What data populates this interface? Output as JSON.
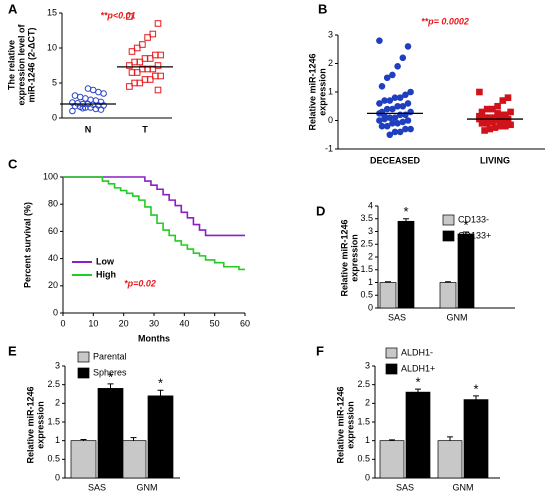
{
  "chart_data": [
    {
      "type": "dot",
      "panel": "A",
      "annotation": "**p<0.01",
      "ylabel": [
        "The relative",
        "expression level of",
        "miR-1246  (2-ΔCT)"
      ],
      "categories": [
        "N",
        "T"
      ],
      "colors": [
        "#2a44c9",
        "#e8191c"
      ],
      "markers": [
        "circle",
        "square"
      ],
      "filled": false,
      "points": [
        [
          1,
          1.2,
          1.3,
          1.5,
          1.5,
          1.6,
          1.7,
          1.8,
          1.8,
          1.9,
          2,
          2,
          2.1,
          2.2,
          2.3,
          2.5,
          2.6,
          2.8,
          3,
          3.2,
          3.5,
          3.7,
          4,
          4.2,
          1.4
        ],
        [
          14.5,
          13.5,
          12,
          11.5,
          10.5,
          10,
          9.5,
          9,
          9,
          8.5,
          8.5,
          8,
          8,
          7.5,
          7.5,
          7,
          7,
          7,
          6.5,
          6.5,
          6,
          6,
          5.5,
          5.5,
          5,
          5,
          4.5,
          4
        ]
      ],
      "means": [
        2,
        7.3
      ],
      "ylim": [
        0,
        15
      ],
      "yticks": [
        0,
        5,
        10,
        15
      ]
    },
    {
      "type": "dot",
      "panel": "B",
      "annotation": "**p= 0.0002",
      "ylabel": [
        "Relative miR-1246",
        "expression"
      ],
      "categories": [
        "DECEASED",
        "LIVING"
      ],
      "colors": [
        "#1f3fbf",
        "#d0121b"
      ],
      "markers": [
        "circle",
        "square"
      ],
      "filled": true,
      "points": [
        [
          2.8,
          2.6,
          2.2,
          1.9,
          1.6,
          1.5,
          1.2,
          1,
          0.9,
          0.8,
          0.8,
          0.7,
          0.7,
          0.6,
          0.6,
          0.5,
          0.5,
          0.4,
          0.4,
          0.3,
          0.3,
          0.2,
          0.2,
          0.1,
          0.1,
          0.05,
          0,
          0,
          -0.05,
          -0.1,
          -0.1,
          -0.2,
          -0.2,
          -0.3,
          -0.3,
          -0.4,
          -0.4,
          -0.5,
          0.15,
          0.25
        ],
        [
          1,
          0.8,
          0.7,
          0.5,
          0.4,
          0.4,
          0.3,
          0.3,
          0.2,
          0.2,
          0.1,
          0.1,
          0.1,
          0.05,
          0,
          0,
          0,
          -0.05,
          -0.1,
          -0.1,
          -0.15,
          -0.2,
          -0.2,
          -0.25,
          -0.3,
          -0.35,
          0.15,
          0.05,
          -0.05,
          0.25
        ]
      ],
      "means": [
        0.25,
        0.05
      ],
      "ylim": [
        -1,
        3
      ],
      "yticks": [
        -1,
        0,
        1,
        2,
        3
      ]
    },
    {
      "type": "line",
      "panel": "C",
      "annotation": "*p=0.02",
      "xlabel": "Months",
      "ylabel": [
        "Percent survival (%)"
      ],
      "series": [
        {
          "name": "Low",
          "color": "#8b1fc4",
          "x": [
            0,
            27,
            27,
            29,
            29,
            31,
            31,
            33,
            33,
            35,
            35,
            37,
            37,
            39,
            39,
            41,
            41,
            43,
            43,
            45,
            45,
            47,
            47,
            60
          ],
          "values": [
            100,
            100,
            97,
            97,
            94,
            94,
            91,
            91,
            87,
            87,
            83,
            83,
            79,
            79,
            74,
            74,
            70,
            70,
            65,
            65,
            61,
            61,
            57,
            57
          ]
        },
        {
          "name": "High",
          "color": "#22cc22",
          "x": [
            0,
            13,
            13,
            15,
            15,
            17,
            17,
            19,
            19,
            21,
            21,
            23,
            23,
            25,
            25,
            27,
            27,
            29,
            29,
            31,
            31,
            33,
            33,
            35,
            35,
            37,
            37,
            39,
            39,
            41,
            41,
            43,
            43,
            45,
            45,
            47,
            47,
            50,
            50,
            53,
            53,
            58,
            58,
            60
          ],
          "values": [
            100,
            100,
            97,
            97,
            95,
            95,
            92,
            92,
            90,
            90,
            88,
            88,
            86,
            86,
            83,
            83,
            78,
            78,
            72,
            72,
            66,
            66,
            61,
            61,
            57,
            57,
            53,
            53,
            50,
            50,
            47,
            47,
            44,
            44,
            42,
            42,
            39,
            39,
            37,
            37,
            34,
            34,
            32,
            32
          ]
        }
      ],
      "xlim": [
        0,
        60
      ],
      "xticks": [
        0,
        10,
        20,
        30,
        40,
        50,
        60
      ],
      "ylim": [
        0,
        100
      ],
      "yticks": [
        0,
        20,
        40,
        60,
        80,
        100
      ]
    },
    {
      "type": "bar",
      "panel": "D",
      "ylabel": [
        "Relative miR-1246",
        "expression"
      ],
      "categories": [
        "SAS",
        "GNM"
      ],
      "series": [
        {
          "name": "CD133-",
          "color": "#c8c8c8",
          "values": [
            1,
            1
          ],
          "errors": [
            0.03,
            0.03
          ]
        },
        {
          "name": "CD133+",
          "color": "#000000",
          "values": [
            3.4,
            2.9
          ],
          "errors": [
            0.1,
            0.08
          ],
          "labels": [
            "*",
            "*"
          ]
        }
      ],
      "ylim": [
        0,
        4
      ],
      "yticks": [
        0,
        0.5,
        1,
        1.5,
        2,
        2.5,
        3,
        3.5,
        4
      ]
    },
    {
      "type": "bar",
      "panel": "E",
      "ylabel": [
        "Relative miR-1246",
        "expression"
      ],
      "categories": [
        "SAS",
        "GNM"
      ],
      "series": [
        {
          "name": "Parental",
          "color": "#c8c8c8",
          "values": [
            1,
            1
          ],
          "errors": [
            0.03,
            0.08
          ]
        },
        {
          "name": "Spheres",
          "color": "#000000",
          "values": [
            2.4,
            2.2
          ],
          "errors": [
            0.12,
            0.15
          ],
          "labels": [
            "*",
            "*"
          ]
        }
      ],
      "ylim": [
        0,
        3
      ],
      "yticks": [
        0,
        0.5,
        1,
        1.5,
        2,
        2.5,
        3
      ]
    },
    {
      "type": "bar",
      "panel": "F",
      "ylabel": [
        "Relative miR-1246",
        "expression"
      ],
      "categories": [
        "SAS",
        "GNM"
      ],
      "series": [
        {
          "name": "ALDH1-",
          "color": "#c8c8c8",
          "values": [
            1,
            1
          ],
          "errors": [
            0.02,
            0.1
          ]
        },
        {
          "name": "ALDH1+",
          "color": "#000000",
          "values": [
            2.3,
            2.1
          ],
          "errors": [
            0.08,
            0.1
          ],
          "labels": [
            "*",
            "*"
          ]
        }
      ],
      "ylim": [
        0,
        3
      ],
      "yticks": [
        0,
        0.5,
        1,
        1.5,
        2,
        2.5,
        3
      ]
    }
  ]
}
